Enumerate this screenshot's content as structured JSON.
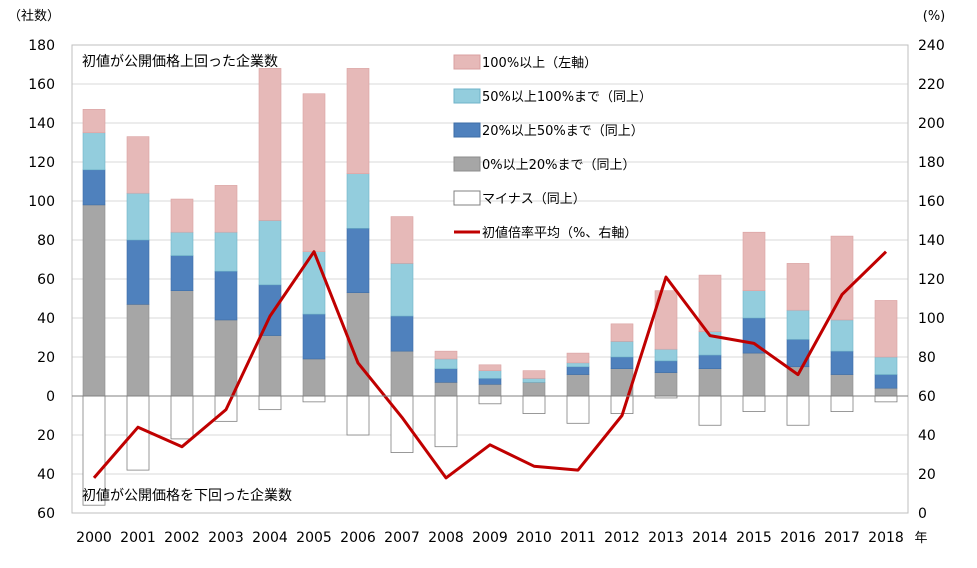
{
  "chart_data": {
    "type": "bar",
    "stacked": true,
    "categories": [
      "2000",
      "2001",
      "2002",
      "2003",
      "2004",
      "2005",
      "2006",
      "2007",
      "2008",
      "2009",
      "2010",
      "2011",
      "2012",
      "2013",
      "2014",
      "2015",
      "2016",
      "2017",
      "2018"
    ],
    "x_unit_label": "年",
    "left_axis": {
      "unit_label": "（社数）",
      "ticks_top": [
        0,
        20,
        40,
        60,
        80,
        100,
        120,
        140,
        160,
        180
      ],
      "ticks_bottom": [
        20,
        40,
        60
      ],
      "ylim": [
        -60,
        180
      ]
    },
    "right_axis": {
      "unit_label": "(%)",
      "ticks": [
        0,
        20,
        40,
        60,
        80,
        100,
        120,
        140,
        160,
        180,
        200,
        220,
        240
      ],
      "ylim": [
        0,
        240
      ]
    },
    "annotations": {
      "upper": "初値が公開価格上回った企業数",
      "lower": "初値が公開価格を下回った企業数"
    },
    "grid": true,
    "legend_position": "top-center",
    "series": [
      {
        "name": "0%以上20%まで（同上）",
        "axis": "left",
        "color": "#a6a6a6",
        "stroke": "#8c8c8c",
        "values": [
          98,
          47,
          54,
          39,
          31,
          19,
          53,
          23,
          7,
          6,
          7,
          11,
          14,
          12,
          14,
          22,
          15,
          11,
          4
        ]
      },
      {
        "name": "20%以上50%まで（同上）",
        "axis": "left",
        "color": "#4f81bd",
        "stroke": "#3d6da6",
        "values": [
          18,
          33,
          18,
          25,
          26,
          23,
          33,
          18,
          7,
          3,
          0,
          4,
          6,
          6,
          7,
          18,
          14,
          12,
          7
        ]
      },
      {
        "name": "50%以上100%まで（同上）",
        "axis": "left",
        "color": "#93cddd",
        "stroke": "#6fb3c9",
        "values": [
          19,
          24,
          12,
          20,
          33,
          32,
          28,
          27,
          5,
          4,
          2,
          2,
          8,
          6,
          12,
          14,
          15,
          16,
          9
        ]
      },
      {
        "name": "100%以上（左軸）",
        "axis": "left",
        "color": "#e6b9b8",
        "stroke": "#d9a0a0",
        "values": [
          12,
          29,
          17,
          24,
          78,
          81,
          54,
          24,
          4,
          3,
          4,
          5,
          9,
          30,
          29,
          30,
          24,
          43,
          29
        ]
      },
      {
        "name": "マイナス（同上）",
        "axis": "left",
        "color": "#ffffff",
        "stroke": "#808080",
        "values": [
          -56,
          -38,
          -22,
          -13,
          -7,
          -3,
          -20,
          -29,
          -26,
          -4,
          -9,
          -14,
          -9,
          -1,
          -15,
          -8,
          -15,
          -8,
          -3
        ]
      },
      {
        "name": "初値倍率平均（%、右軸）",
        "axis": "right",
        "type": "line",
        "color": "#c00000",
        "values": [
          18,
          44,
          34,
          53,
          101,
          134,
          77,
          49,
          18,
          35,
          24,
          22,
          50,
          121,
          91,
          87,
          71,
          112,
          134
        ]
      }
    ]
  }
}
